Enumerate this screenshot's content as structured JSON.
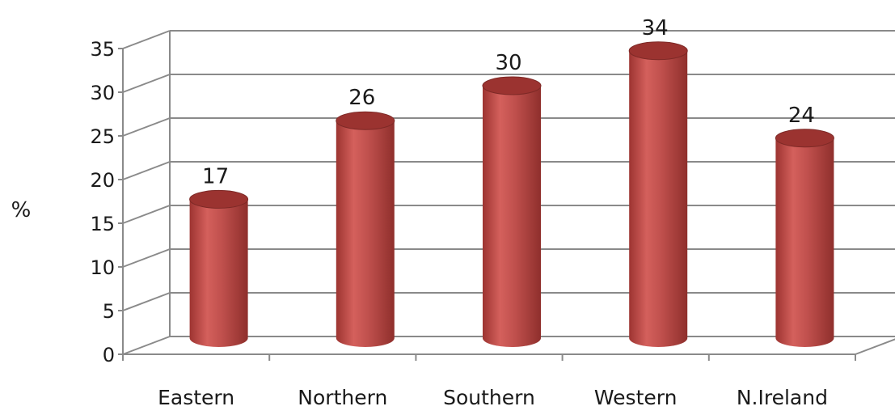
{
  "chart_data": {
    "type": "bar",
    "style": "3d-cylinder",
    "categories": [
      "Eastern",
      "Northern",
      "Southern",
      "Western",
      "N.Ireland"
    ],
    "values": [
      17,
      26,
      30,
      34,
      24
    ],
    "data_labels": [
      "17",
      "26",
      "30",
      "34",
      "24"
    ],
    "ylabel": "%",
    "xlabel": "",
    "title": "",
    "ylim": [
      0,
      35
    ],
    "yticks": [
      0,
      5,
      10,
      15,
      20,
      25,
      30,
      35
    ],
    "ytick_labels": [
      "0",
      "5",
      "10",
      "15",
      "20",
      "25",
      "30",
      "35"
    ],
    "grid": true,
    "legend": "none",
    "colors": {
      "bar_main": "#c0504d",
      "bar_top": "#9b3330",
      "bar_dark": "#8c2d2a",
      "grid": "#8a8a8a"
    }
  }
}
